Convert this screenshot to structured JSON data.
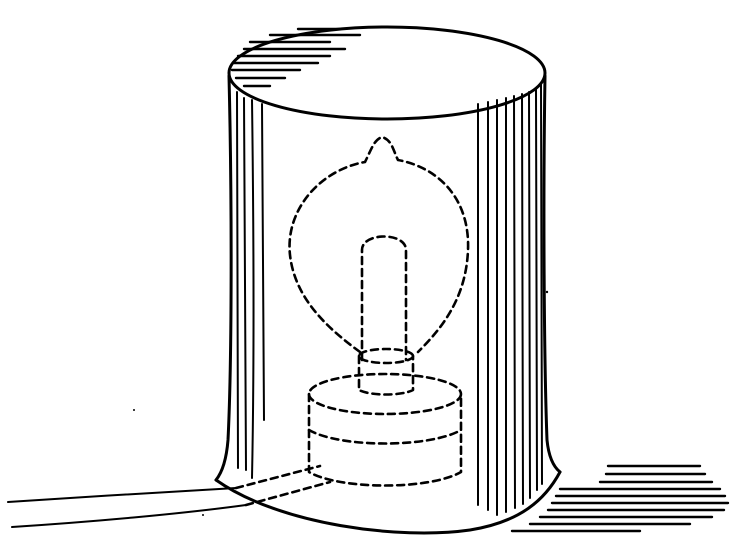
{
  "figure": {
    "subject": "lamp-bulb-inside-cylindrical-shade",
    "ink_color": "#000000",
    "paper_color": "#ffffff"
  }
}
